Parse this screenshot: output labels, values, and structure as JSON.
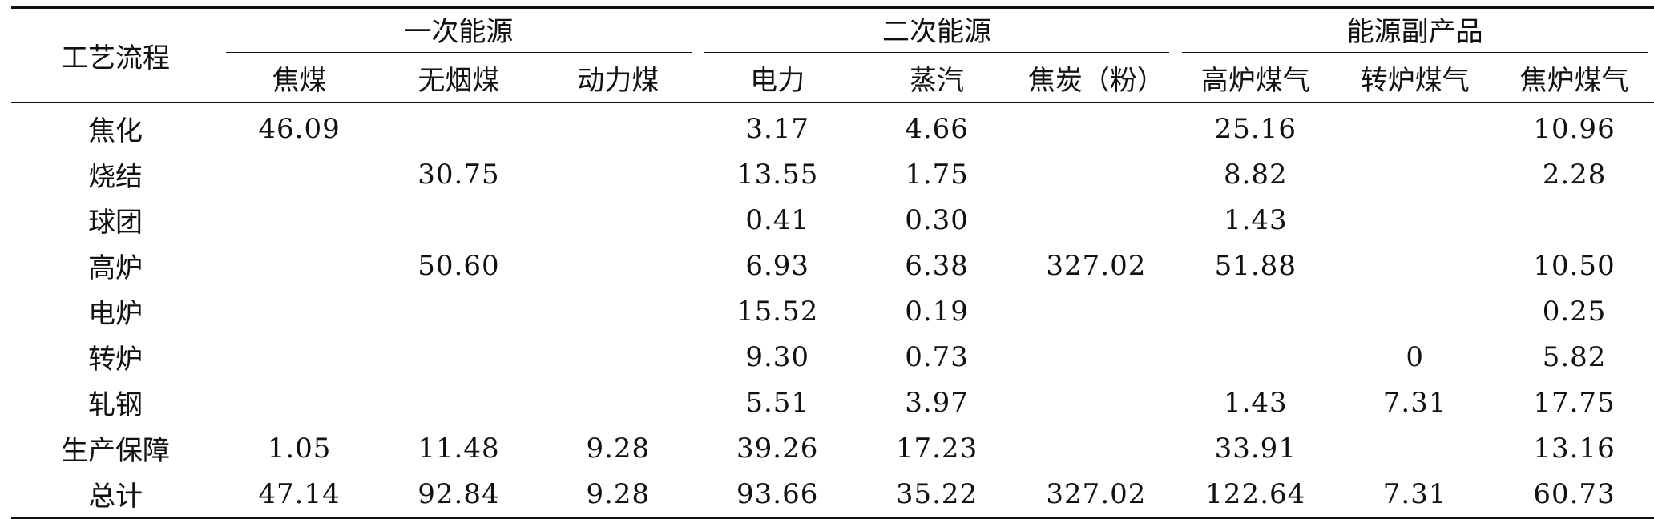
{
  "table": {
    "row_header": "工艺流程",
    "groups": [
      {
        "label": "一次能源",
        "span": 3
      },
      {
        "label": "二次能源",
        "span": 3
      },
      {
        "label": "能源副产品",
        "span": 3
      }
    ],
    "columns": [
      "焦煤",
      "无烟煤",
      "动力煤",
      "电力",
      "蒸汽",
      "焦炭（粉）",
      "高炉煤气",
      "转炉煤气",
      "焦炉煤气"
    ],
    "rows": [
      {
        "label": "焦化",
        "cells": [
          "46.09",
          "",
          "",
          "3.17",
          "4.66",
          "",
          "25.16",
          "",
          "10.96"
        ]
      },
      {
        "label": "烧结",
        "cells": [
          "",
          "30.75",
          "",
          "13.55",
          "1.75",
          "",
          "8.82",
          "",
          "2.28"
        ]
      },
      {
        "label": "球团",
        "cells": [
          "",
          "",
          "",
          "0.41",
          "0.30",
          "",
          "1.43",
          "",
          ""
        ]
      },
      {
        "label": "高炉",
        "cells": [
          "",
          "50.60",
          "",
          "6.93",
          "6.38",
          "327.02",
          "51.88",
          "",
          "10.50"
        ]
      },
      {
        "label": "电炉",
        "cells": [
          "",
          "",
          "",
          "15.52",
          "0.19",
          "",
          "",
          "",
          "0.25"
        ]
      },
      {
        "label": "转炉",
        "cells": [
          "",
          "",
          "",
          "9.30",
          "0.73",
          "",
          "",
          "0",
          "5.82"
        ]
      },
      {
        "label": "轧钢",
        "cells": [
          "",
          "",
          "",
          "5.51",
          "3.97",
          "",
          "1.43",
          "7.31",
          "17.75"
        ]
      },
      {
        "label": "生产保障",
        "cells": [
          "1.05",
          "11.48",
          "9.28",
          "39.26",
          "17.23",
          "",
          "33.91",
          "",
          "13.16"
        ]
      },
      {
        "label": "总计",
        "cells": [
          "47.14",
          "92.84",
          "9.28",
          "93.66",
          "35.22",
          "327.02",
          "122.64",
          "7.31",
          "60.73"
        ]
      }
    ]
  }
}
